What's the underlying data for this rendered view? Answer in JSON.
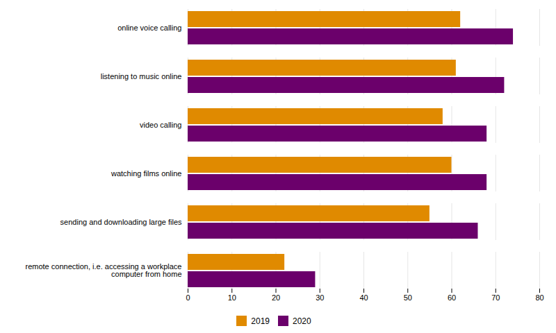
{
  "chart_data": {
    "type": "bar",
    "orientation": "horizontal",
    "categories": [
      "online voice calling",
      "listening to music online",
      "video calling",
      "watching films online",
      "sending and downloading large files",
      "remote connection, i.e. accessing a workplace\ncomputer from home"
    ],
    "series": [
      {
        "name": "2019",
        "color": "#E08A00",
        "values": [
          62,
          61,
          58,
          60,
          55,
          22
        ]
      },
      {
        "name": "2020",
        "color": "#6B006B",
        "values": [
          74,
          72,
          68,
          68,
          66,
          29
        ]
      }
    ],
    "xlim": [
      0,
      80
    ],
    "xticks": [
      0,
      10,
      20,
      30,
      40,
      50,
      60,
      70,
      80
    ],
    "grid": true,
    "legend": "bottom"
  }
}
